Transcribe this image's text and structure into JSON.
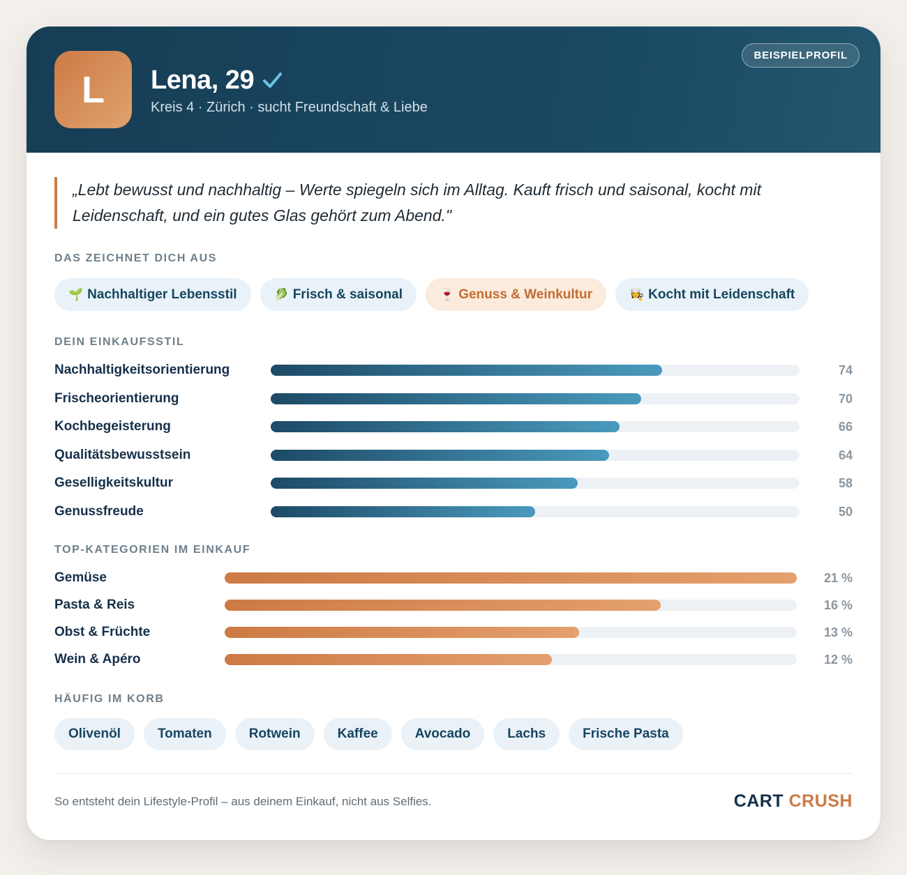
{
  "profile": {
    "avatar_letter": "L",
    "name": "Lena, 29",
    "verified_icon": "check-icon",
    "subtitle": "Kreis 4 · Zürich · sucht Freundschaft & Liebe",
    "badge": "BEISPIELPROFIL"
  },
  "quote": "„Lebt bewusst und nachhaltig – Werte spiegeln sich im Alltag. Kauft frisch und saisonal, kocht mit Leidenschaft, und ein gutes Glas gehört zum Abend.\"",
  "traits": {
    "label": "DAS ZEICHNET DICH AUS",
    "items": [
      {
        "emoji": "🌱",
        "label": "Nachhaltiger Lebensstil"
      },
      {
        "emoji": "🥬",
        "label": "Frisch & saisonal"
      },
      {
        "emoji": "🍷",
        "label": "Genuss & Weinkultur"
      },
      {
        "emoji": "👩‍🍳",
        "label": "Kocht mit Leidenschaft"
      }
    ]
  },
  "shopping_style": {
    "label": "DEIN EINKAUFSSTIL",
    "max": 100,
    "items": [
      {
        "label": "Nachhaltigkeitsorientierung",
        "value": 74,
        "display": "74"
      },
      {
        "label": "Frischeorientierung",
        "value": 70,
        "display": "70"
      },
      {
        "label": "Kochbegeisterung",
        "value": 66,
        "display": "66"
      },
      {
        "label": "Qualitätsbewusstsein",
        "value": 64,
        "display": "64"
      },
      {
        "label": "Geselligkeitskultur",
        "value": 58,
        "display": "58"
      },
      {
        "label": "Genussfreude",
        "value": 50,
        "display": "50"
      }
    ]
  },
  "categories": {
    "label": "TOP-KATEGORIEN IM EINKAUF",
    "max": 21,
    "items": [
      {
        "label": "Gemüse",
        "value": 21,
        "display": "21 %"
      },
      {
        "label": "Pasta & Reis",
        "value": 16,
        "display": "16 %"
      },
      {
        "label": "Obst & Früchte",
        "value": 13,
        "display": "13 %"
      },
      {
        "label": "Wein & Apéro",
        "value": 12,
        "display": "12 %"
      }
    ]
  },
  "basket": {
    "label": "HÄUFIG IM KORB",
    "items": [
      "Olivenöl",
      "Tomaten",
      "Rotwein",
      "Kaffee",
      "Avocado",
      "Lachs",
      "Frische Pasta"
    ]
  },
  "footer": {
    "text": "So entsteht dein Lifestyle-Profil – aus deinem Einkauf, nicht aus Selfies.",
    "brand_part1": "CART",
    "brand_part2": "CRUSH"
  },
  "colors": {
    "header": "#163d55",
    "accent": "#cc7b45",
    "bar_blue": "#1d4a66",
    "bar_orange": "#cd7a44"
  }
}
